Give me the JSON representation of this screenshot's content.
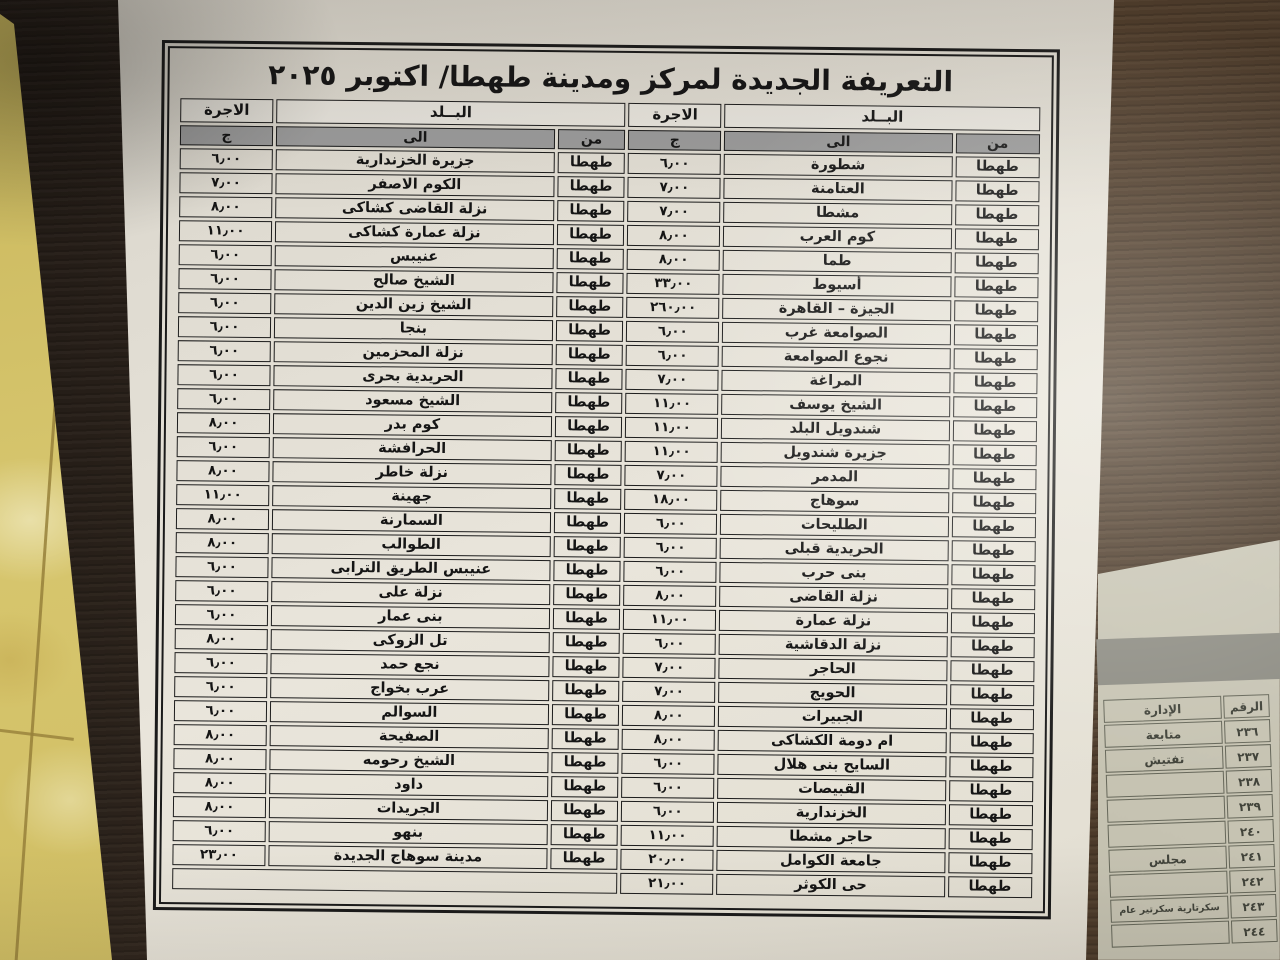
{
  "document": {
    "title": "التعريفة الجديدة لمركز ومدينة طهطا/ اكتوبر ٢٠٢٥"
  },
  "main_table": {
    "col_country": "البــلد",
    "col_fare": "الاجرة",
    "sub_from": "من",
    "sub_to": "الى",
    "sub_currency": "ج",
    "rows": [
      {
        "right": {
          "from": "طهطا",
          "to": "شطورة",
          "fare": "٦٫٠٠"
        },
        "left": {
          "from": "طهطا",
          "to": "جزيرة الخزندارية",
          "fare": "٦٫٠٠"
        }
      },
      {
        "right": {
          "from": "طهطا",
          "to": "العتامنة",
          "fare": "٧٫٠٠"
        },
        "left": {
          "from": "طهطا",
          "to": "الكوم الاصفر",
          "fare": "٧٫٠٠"
        }
      },
      {
        "right": {
          "from": "طهطا",
          "to": "مشطا",
          "fare": "٧٫٠٠"
        },
        "left": {
          "from": "طهطا",
          "to": "نزلة القاضى كشاكى",
          "fare": "٨٫٠٠"
        }
      },
      {
        "right": {
          "from": "طهطا",
          "to": "كوم العرب",
          "fare": "٨٫٠٠"
        },
        "left": {
          "from": "طهطا",
          "to": "نزلة عمارة كشاكى",
          "fare": "١١٫٠٠"
        }
      },
      {
        "right": {
          "from": "طهطا",
          "to": "طما",
          "fare": "٨٫٠٠"
        },
        "left": {
          "from": "طهطا",
          "to": "عنيبس",
          "fare": "٦٫٠٠"
        }
      },
      {
        "right": {
          "from": "طهطا",
          "to": "أسيوط",
          "fare": "٣٣٫٠٠"
        },
        "left": {
          "from": "طهطا",
          "to": "الشيخ صالح",
          "fare": "٦٫٠٠"
        }
      },
      {
        "right": {
          "from": "طهطا",
          "to": "الجيزة – القاهرة",
          "fare": "٢٦٠٫٠٠"
        },
        "left": {
          "from": "طهطا",
          "to": "الشيخ زين الدين",
          "fare": "٦٫٠٠"
        }
      },
      {
        "right": {
          "from": "طهطا",
          "to": "الصوامعة غرب",
          "fare": "٦٫٠٠"
        },
        "left": {
          "from": "طهطا",
          "to": "بنجا",
          "fare": "٦٫٠٠"
        }
      },
      {
        "right": {
          "from": "طهطا",
          "to": "نجوع الصوامعة",
          "fare": "٦٫٠٠"
        },
        "left": {
          "from": "طهطا",
          "to": "نزلة المحزمين",
          "fare": "٦٫٠٠"
        }
      },
      {
        "right": {
          "from": "طهطا",
          "to": "المراغة",
          "fare": "٧٫٠٠"
        },
        "left": {
          "from": "طهطا",
          "to": "الحريدية بحرى",
          "fare": "٦٫٠٠"
        }
      },
      {
        "right": {
          "from": "طهطا",
          "to": "الشيخ يوسف",
          "fare": "١١٫٠٠"
        },
        "left": {
          "from": "طهطا",
          "to": "الشيخ مسعود",
          "fare": "٦٫٠٠"
        }
      },
      {
        "right": {
          "from": "طهطا",
          "to": "شندويل البلد",
          "fare": "١١٫٠٠"
        },
        "left": {
          "from": "طهطا",
          "to": "كوم بدر",
          "fare": "٨٫٠٠"
        }
      },
      {
        "right": {
          "from": "طهطا",
          "to": "جزيرة شندويل",
          "fare": "١١٫٠٠"
        },
        "left": {
          "from": "طهطا",
          "to": "الحرافشة",
          "fare": "٦٫٠٠"
        }
      },
      {
        "right": {
          "from": "طهطا",
          "to": "المدمر",
          "fare": "٧٫٠٠"
        },
        "left": {
          "from": "طهطا",
          "to": "نزلة خاطر",
          "fare": "٨٫٠٠"
        }
      },
      {
        "right": {
          "from": "طهطا",
          "to": "سوهاج",
          "fare": "١٨٫٠٠"
        },
        "left": {
          "from": "طهطا",
          "to": "جهينة",
          "fare": "١١٫٠٠"
        }
      },
      {
        "right": {
          "from": "طهطا",
          "to": "الطليحات",
          "fare": "٦٫٠٠"
        },
        "left": {
          "from": "طهطا",
          "to": "السمارنة",
          "fare": "٨٫٠٠"
        }
      },
      {
        "right": {
          "from": "طهطا",
          "to": "الحريدية قبلى",
          "fare": "٦٫٠٠"
        },
        "left": {
          "from": "طهطا",
          "to": "الطوالب",
          "fare": "٨٫٠٠"
        }
      },
      {
        "right": {
          "from": "طهطا",
          "to": "بنى حرب",
          "fare": "٦٫٠٠"
        },
        "left": {
          "from": "طهطا",
          "to": "عنيبس الطريق الترابى",
          "fare": "٦٫٠٠"
        }
      },
      {
        "right": {
          "from": "طهطا",
          "to": "نزلة القاضى",
          "fare": "٨٫٠٠"
        },
        "left": {
          "from": "طهطا",
          "to": "نزلة على",
          "fare": "٦٫٠٠"
        }
      },
      {
        "right": {
          "from": "طهطا",
          "to": "نزلة عمارة",
          "fare": "١١٫٠٠"
        },
        "left": {
          "from": "طهطا",
          "to": "بنى عمار",
          "fare": "٦٫٠٠"
        }
      },
      {
        "right": {
          "from": "طهطا",
          "to": "نزلة الدقاشية",
          "fare": "٦٫٠٠"
        },
        "left": {
          "from": "طهطا",
          "to": "تل الزوكى",
          "fare": "٨٫٠٠"
        }
      },
      {
        "right": {
          "from": "طهطا",
          "to": "الحاجر",
          "fare": "٧٫٠٠"
        },
        "left": {
          "from": "طهطا",
          "to": "نجع حمد",
          "fare": "٦٫٠٠"
        }
      },
      {
        "right": {
          "from": "طهطا",
          "to": "الحويج",
          "fare": "٧٫٠٠"
        },
        "left": {
          "from": "طهطا",
          "to": "عرب بخواج",
          "fare": "٦٫٠٠"
        }
      },
      {
        "right": {
          "from": "طهطا",
          "to": "الجبيرات",
          "fare": "٨٫٠٠"
        },
        "left": {
          "from": "طهطا",
          "to": "السوالم",
          "fare": "٦٫٠٠"
        }
      },
      {
        "right": {
          "from": "طهطا",
          "to": "ام دومة الكشاكى",
          "fare": "٨٫٠٠"
        },
        "left": {
          "from": "طهطا",
          "to": "الصفيحة",
          "fare": "٨٫٠٠"
        }
      },
      {
        "right": {
          "from": "طهطا",
          "to": "السايح بنى هلال",
          "fare": "٦٫٠٠"
        },
        "left": {
          "from": "طهطا",
          "to": "الشيخ رحومه",
          "fare": "٨٫٠٠"
        }
      },
      {
        "right": {
          "from": "طهطا",
          "to": "القبيصات",
          "fare": "٦٫٠٠"
        },
        "left": {
          "from": "طهطا",
          "to": "داود",
          "fare": "٨٫٠٠"
        }
      },
      {
        "right": {
          "from": "طهطا",
          "to": "الخزندارية",
          "fare": "٦٫٠٠"
        },
        "left": {
          "from": "طهطا",
          "to": "الجريدات",
          "fare": "٨٫٠٠"
        }
      },
      {
        "right": {
          "from": "طهطا",
          "to": "حاجر مشطا",
          "fare": "١١٫٠٠"
        },
        "left": {
          "from": "طهطا",
          "to": "بنهو",
          "fare": "٦٫٠٠"
        }
      },
      {
        "right": {
          "from": "طهطا",
          "to": "جامعة الكوامل",
          "fare": "٢٠٫٠٠"
        },
        "left": {
          "from": "طهطا",
          "to": "مدينة سوهاج الجديدة",
          "fare": "٢٣٫٠٠"
        }
      },
      {
        "right": {
          "from": "طهطا",
          "to": "حى الكوثر",
          "fare": "٢١٫٠٠"
        },
        "left": null
      }
    ]
  },
  "side_page": {
    "col_number": "الرقم",
    "col_admin": "الإدارة",
    "rows": [
      {
        "number": "٢٣٦",
        "admin": "متابعة"
      },
      {
        "number": "٢٣٧",
        "admin": "تفتيش"
      },
      {
        "number": "٢٣٨",
        "admin": ""
      },
      {
        "number": "٢٣٩",
        "admin": ""
      },
      {
        "number": "٢٤٠",
        "admin": ""
      },
      {
        "number": "٢٤١",
        "admin": "مجلس"
      },
      {
        "number": "٢٤٢",
        "admin": ""
      },
      {
        "number": "٢٤٣",
        "admin": "سكرتارية سكرتير عام"
      },
      {
        "number": "٢٤٤",
        "admin": ""
      }
    ]
  }
}
